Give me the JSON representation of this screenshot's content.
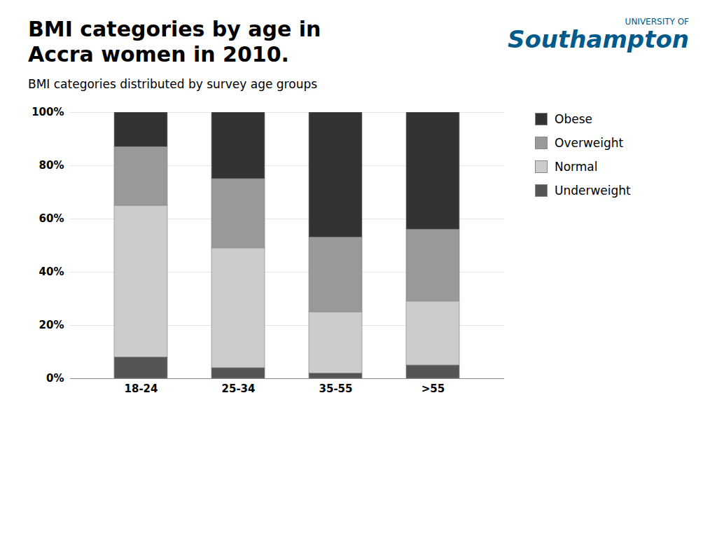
{
  "chart_data": {
    "type": "bar",
    "stacked": true,
    "title": "BMI categories by age in\nAccra women in 2010.",
    "subtitle": "BMI categories distributed by survey age groups",
    "annotations": [
      {
        "text": "UNIVERSITY OF",
        "color": "#005a8c"
      },
      {
        "text": "Southampton",
        "color": "#005a8c"
      }
    ],
    "categories": [
      "18-24",
      "25-34",
      "35-55",
      ">55"
    ],
    "series": [
      {
        "name": "Underweight",
        "color": "#555555",
        "values": [
          8,
          4,
          2,
          5
        ]
      },
      {
        "name": "Normal",
        "color": "#cccccc",
        "values": [
          57,
          45,
          23,
          24
        ]
      },
      {
        "name": "Overweight",
        "color": "#999999",
        "values": [
          22,
          26,
          28,
          27
        ]
      },
      {
        "name": "Obese",
        "color": "#333333",
        "values": [
          13,
          25,
          47,
          44
        ]
      }
    ],
    "ylim": [
      0,
      100
    ],
    "yticks": [
      {
        "value": 0,
        "label": "0%"
      },
      {
        "value": 20,
        "label": "20%"
      },
      {
        "value": 40,
        "label": "40%"
      },
      {
        "value": 60,
        "label": "60%"
      },
      {
        "value": 80,
        "label": "80%"
      },
      {
        "value": 100,
        "label": "100%"
      }
    ],
    "grid": true,
    "legend": "right"
  }
}
